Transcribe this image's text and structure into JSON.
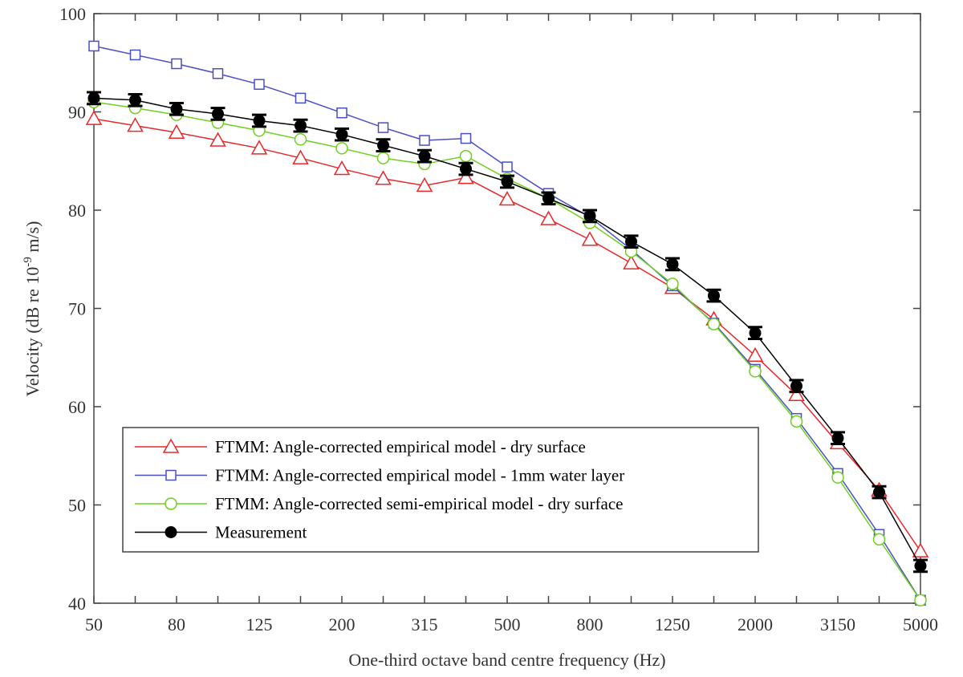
{
  "chart_data": {
    "type": "line",
    "title": "",
    "xlabel": "One-third octave band centre frequency (Hz)",
    "ylabel_parts": [
      "Velocity (dB re 10",
      "-9",
      " m/s)"
    ],
    "ylim": [
      40,
      100
    ],
    "yticks": [
      "40",
      "50",
      "60",
      "70",
      "80",
      "90",
      "100"
    ],
    "categories": [
      "50",
      "63",
      "80",
      "100",
      "125",
      "160",
      "200",
      "250",
      "315",
      "400",
      "500",
      "630",
      "800",
      "1000",
      "1250",
      "1600",
      "2000",
      "2500",
      "3150",
      "4000",
      "5000"
    ],
    "xtick_labels_shown": [
      "50",
      "80",
      "125",
      "200",
      "315",
      "500",
      "800",
      "1250",
      "2000",
      "3150",
      "5000"
    ],
    "grid": false,
    "legend_position": "bottom-left",
    "series": [
      {
        "name": "FTMM: Angle-corrected empirical model - dry surface",
        "color": "#e8282a",
        "marker": "triangle-open",
        "values": [
          89.3,
          88.6,
          87.9,
          87.1,
          86.3,
          85.3,
          84.2,
          83.2,
          82.5,
          83.3,
          81.1,
          79.1,
          77.0,
          74.6,
          72.1,
          68.9,
          65.2,
          61.2,
          56.3,
          51.5,
          45.3
        ]
      },
      {
        "name": "FTMM: Angle-corrected empirical model - 1mm water layer",
        "color": "#4a4fc4",
        "marker": "square-open",
        "values": [
          96.7,
          95.8,
          94.9,
          93.9,
          92.8,
          91.4,
          89.9,
          88.4,
          87.1,
          87.3,
          84.4,
          81.7,
          79.3,
          76.0,
          72.3,
          68.5,
          63.8,
          58.8,
          53.2,
          47.0,
          40.3
        ]
      },
      {
        "name": "FTMM: Angle-corrected semi-empirical model - dry surface",
        "color": "#6fd020",
        "marker": "circle-open",
        "values": [
          91.0,
          90.4,
          89.7,
          88.9,
          88.1,
          87.2,
          86.3,
          85.3,
          84.7,
          85.5,
          83.2,
          81.2,
          78.7,
          75.8,
          72.5,
          68.4,
          63.6,
          58.5,
          52.8,
          46.5,
          40.3
        ]
      },
      {
        "name": "Measurement",
        "color": "#000000",
        "marker": "circle-filled",
        "error_bar": 0.6,
        "values": [
          91.4,
          91.2,
          90.3,
          89.8,
          89.1,
          88.6,
          87.7,
          86.6,
          85.5,
          84.2,
          82.9,
          81.2,
          79.4,
          76.8,
          74.5,
          71.3,
          67.5,
          62.1,
          56.8,
          51.3,
          43.8
        ]
      }
    ]
  }
}
